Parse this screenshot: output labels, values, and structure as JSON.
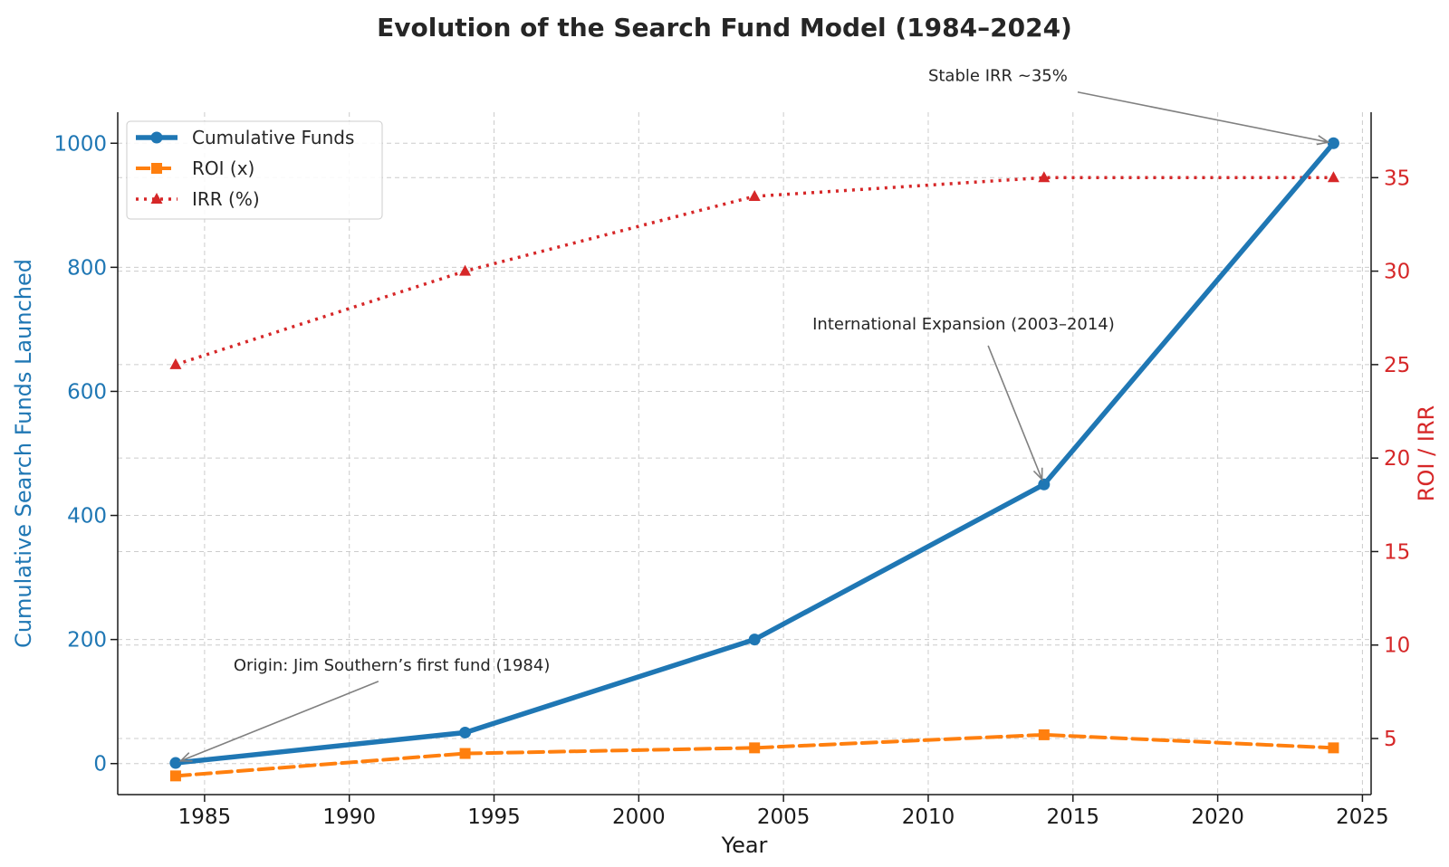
{
  "chart_data": {
    "type": "line",
    "title": "Evolution of the Search Fund Model (1984–2024)",
    "xlabel": "Year",
    "ylabel_left": "Cumulative Search Funds Launched",
    "ylabel_right": "ROI / IRR",
    "xlim": [
      1982,
      2025.3
    ],
    "ylim_left": [
      -50,
      1050
    ],
    "ylim_right": [
      2,
      38.5
    ],
    "x_ticks": [
      1985,
      1990,
      1995,
      2000,
      2005,
      2010,
      2015,
      2020,
      2025
    ],
    "y_left_ticks": [
      0,
      200,
      400,
      600,
      800,
      1000
    ],
    "y_right_ticks": [
      5,
      10,
      15,
      20,
      25,
      30,
      35
    ],
    "x": [
      1984,
      1994,
      2004,
      2014,
      2024
    ],
    "series": [
      {
        "name": "Cumulative Funds",
        "axis": "left",
        "values": [
          1,
          50,
          200,
          450,
          1000
        ],
        "color": "#1f77b4",
        "style": "solid",
        "marker": "circle"
      },
      {
        "name": "ROI (x)",
        "axis": "right",
        "values": [
          3,
          4.2,
          4.5,
          5.2,
          4.5
        ],
        "color": "#ff7f0e",
        "style": "dashed",
        "marker": "square"
      },
      {
        "name": "IRR (%)",
        "axis": "right",
        "values": [
          25,
          30,
          34,
          35,
          35
        ],
        "color": "#d62728",
        "style": "dotted",
        "marker": "triangle"
      }
    ],
    "annotations": [
      {
        "text": "Origin: Jim Southern’s first fund (1984)",
        "x": 1984,
        "y": 1,
        "axis": "left",
        "text_x": 1986,
        "text_y": 150
      },
      {
        "text": "International Expansion (2003–2014)",
        "x": 2014,
        "y": 450,
        "axis": "left",
        "text_x": 2006,
        "text_y": 700
      },
      {
        "text": "Stable IRR ~35%",
        "x": 2024,
        "y": 1000,
        "axis": "left",
        "text_x": 2010,
        "text_y": 1100
      }
    ],
    "legend_position": "top-left",
    "grid": true,
    "colors": {
      "left_axis": "#1f77b4",
      "right_axis": "#d62728",
      "grid": "#cccccc",
      "annotation_arrow": "#808080"
    }
  }
}
